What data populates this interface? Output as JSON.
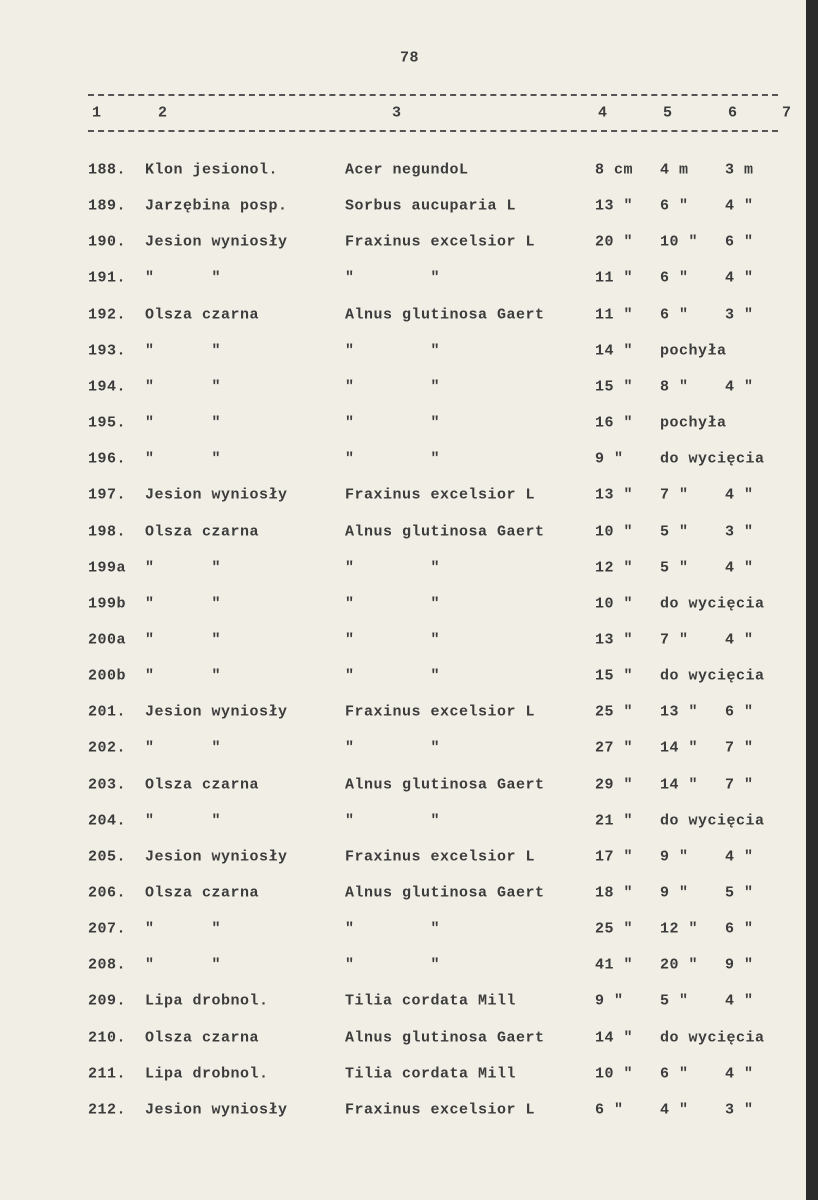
{
  "page_number": "78",
  "header": [
    "1",
    "2",
    "3",
    "4",
    "5",
    "6",
    "7"
  ],
  "rows": [
    [
      "188.",
      "Klon jesionol.",
      "Acer negundoL",
      "8 cm",
      "4 m",
      "3 m"
    ],
    [
      "189.",
      "Jarzębina posp.",
      "Sorbus aucuparia L",
      "13 \"",
      "6 \"",
      "4 \""
    ],
    [
      "190.",
      "Jesion wyniosły",
      "Fraxinus excelsior L",
      "20 \"",
      "10 \"",
      "6 \""
    ],
    [
      "191.",
      "\"      \"",
      "\"        \"",
      "11 \"",
      "6 \"",
      "4 \""
    ],
    [
      "192.",
      "Olsza czarna",
      "Alnus glutinosa Gaert",
      "11 \"",
      "6 \"",
      "3 \""
    ],
    [
      "193.",
      "\"      \"",
      "\"        \"",
      "14 \"",
      "pochyła"
    ],
    [
      "194.",
      "\"      \"",
      "\"        \"",
      "15 \"",
      "8 \"",
      "4 \""
    ],
    [
      "195.",
      "\"      \"",
      "\"        \"",
      "16 \"",
      "pochyła"
    ],
    [
      "196.",
      "\"      \"",
      "\"        \"",
      "9 \"",
      "do wycięcia"
    ],
    [
      "197.",
      "Jesion wyniosły",
      "Fraxinus excelsior L",
      "13 \"",
      "7 \"",
      "4 \""
    ],
    [
      "198.",
      "Olsza czarna",
      "Alnus glutinosa Gaert",
      "10 \"",
      "5 \"",
      "3 \""
    ],
    [
      "199a",
      "\"      \"",
      "\"        \"",
      "12 \"",
      "5 \"",
      "4 \""
    ],
    [
      "199b",
      "\"      \"",
      "\"        \"",
      "10 \"",
      "do wycięcia"
    ],
    [
      "200a",
      "\"      \"",
      "\"        \"",
      "13 \"",
      "7 \"",
      "4 \""
    ],
    [
      "200b",
      "\"      \"",
      "\"        \"",
      "15 \"",
      "do wycięcia"
    ],
    [
      "201.",
      "Jesion wyniosły",
      "Fraxinus excelsior L",
      "25 \"",
      "13 \"",
      "6 \""
    ],
    [
      "202.",
      "\"      \"",
      "\"        \"",
      "27 \"",
      "14 \"",
      "7 \""
    ],
    [
      "203.",
      "Olsza czarna",
      "Alnus glutinosa Gaert",
      "29 \"",
      "14 \"",
      "7 \""
    ],
    [
      "204.",
      "\"      \"",
      "\"        \"",
      "21 \"",
      "do wycięcia"
    ],
    [
      "205.",
      "Jesion wyniosły",
      "Fraxinus excelsior L",
      "17 \"",
      "9 \"",
      "4 \""
    ],
    [
      "206.",
      "Olsza czarna",
      "Alnus glutinosa Gaert",
      "18 \"",
      "9 \"",
      "5 \""
    ],
    [
      "207.",
      "\"      \"",
      "\"        \"",
      "25 \"",
      "12 \"",
      "6 \""
    ],
    [
      "208.",
      "\"      \"",
      "\"        \"",
      "41 \"",
      "20 \"",
      "9 \""
    ],
    [
      "209.",
      "Lipa drobnol.",
      "Tilia cordata Mill",
      "9 \"",
      "5 \"",
      "4 \""
    ],
    [
      "210.",
      "Olsza czarna",
      "Alnus glutinosa Gaert",
      "14 \"",
      "do wycięcia"
    ],
    [
      "211.",
      "Lipa drobnol.",
      "Tilia cordata Mill",
      "10 \"",
      "6 \"",
      "4 \""
    ],
    [
      "212.",
      "Jesion wyniosły",
      "Fraxinus excelsior L",
      "6 \"",
      "4 \"",
      "3 \""
    ]
  ]
}
